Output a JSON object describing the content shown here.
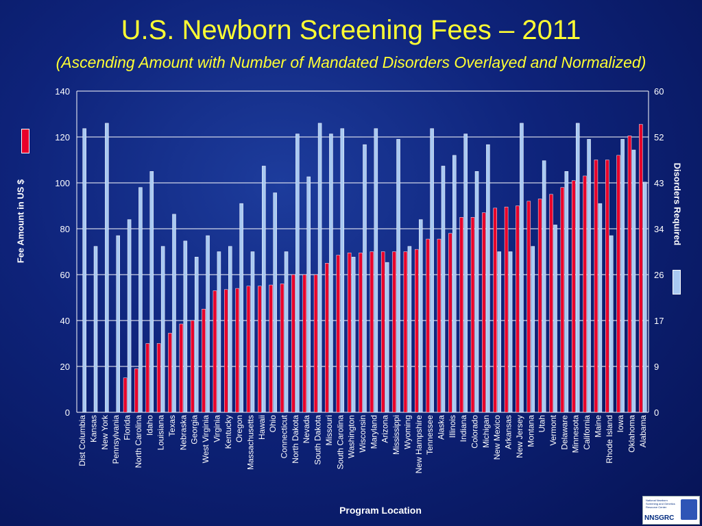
{
  "title": "U.S. Newborn Screening Fees – 2011",
  "subtitle": "(Ascending Amount with Number of Mandated Disorders Overlayed and Normalized)",
  "chart_data": {
    "type": "bar",
    "title": "U.S. Newborn Screening Fees – 2011",
    "subtitle": "(Ascending Amount with Number of Mandated Disorders Overlayed and Normalized)",
    "xlabel": "Program Location",
    "ylabel": "Fee Amount in US $",
    "y2label": "Disorders Required",
    "ylim": [
      0,
      140
    ],
    "y2lim": [
      0,
      60
    ],
    "yticks": [
      "0",
      "20",
      "40",
      "60",
      "80",
      "100",
      "120",
      "140"
    ],
    "y2ticks": [
      "0",
      "9",
      "17",
      "26",
      "34",
      "43",
      "52",
      "60"
    ],
    "grid": true,
    "categories": [
      "Dist Columbia",
      "Kansas",
      "New York",
      "Pennsylvania",
      "Florida",
      "North Carolina",
      "Idaho",
      "Louisiana",
      "Texas",
      "Nebraska",
      "Georgia",
      "West Virginia",
      "Virginia",
      "Kentucky",
      "Oregon",
      "Massachusetts",
      "Hawaii",
      "Ohio",
      "Connecticut",
      "North Dakota",
      "Nevada",
      "South Dakota",
      "Missouri",
      "South Carolina",
      "Washington",
      "Wisconsin",
      "Maryland",
      "Arizona",
      "Mississippi",
      "Wyoming",
      "New Hampshire",
      "Tennessee",
      "Alaska",
      "Illinois",
      "Indiana",
      "Colorado",
      "Michigan",
      "New Mexico",
      "Arkansas",
      "New Jersey",
      "Montana",
      "Utah",
      "Vermont",
      "Delaware",
      "Minnesota",
      "California",
      "Maine",
      "Rhode Island",
      "Iowa",
      "Oklahoma",
      "Alabama"
    ],
    "series": [
      {
        "axis": "left",
        "color": "#e8002a",
        "values": [
          0,
          0,
          0,
          0,
          15,
          19,
          30,
          30,
          34.5,
          38.5,
          40,
          45,
          53,
          53.5,
          54,
          55,
          55,
          55.5,
          56,
          60,
          60,
          60,
          65,
          68.5,
          69.5,
          69.5,
          70,
          70,
          70,
          70,
          71,
          75.5,
          75.5,
          78,
          85,
          85,
          87,
          89,
          89.5,
          90,
          92,
          93,
          95,
          98,
          101,
          103,
          110,
          110,
          112,
          120.5,
          125.5
        ]
      },
      {
        "axis": "right",
        "color": "#a9c9f2",
        "values": [
          53,
          31,
          54,
          33,
          36,
          42,
          45,
          31,
          37,
          32,
          29,
          33,
          30,
          31,
          39,
          30,
          46,
          41,
          30,
          52,
          44,
          54,
          52,
          53,
          29,
          50,
          53,
          28,
          51,
          31,
          36,
          53,
          46,
          48,
          52,
          45,
          50,
          30,
          30,
          54,
          31,
          47,
          35,
          45,
          54,
          51,
          39,
          33,
          51,
          49,
          43
        ]
      }
    ]
  },
  "logo_text": "NNSGRC",
  "logo_subtext": "National Newborn Screening and Genetics Resource Center"
}
